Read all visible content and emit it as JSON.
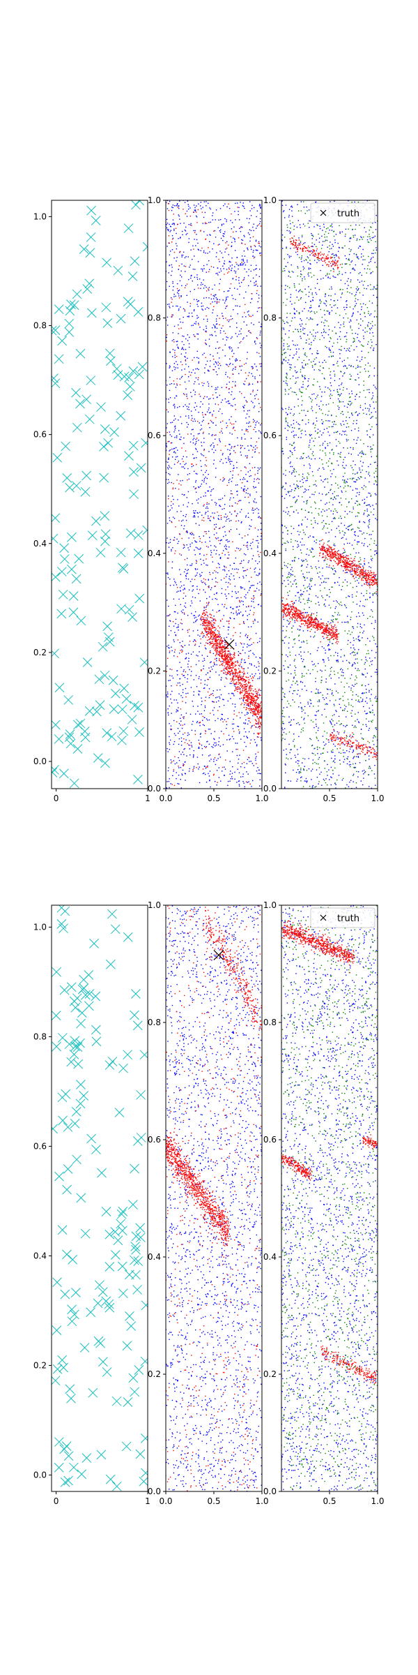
{
  "chart_data": [
    {
      "type": "scatter",
      "row": 1,
      "panel": 1,
      "xlim": [
        -0.05,
        1.0
      ],
      "ylim": [
        -0.05,
        1.03
      ],
      "xticks": [
        0,
        1
      ],
      "xtick_labels": [
        "0",
        "1"
      ],
      "yticks": [
        0.0,
        0.2,
        0.4,
        0.6,
        0.8,
        1.0
      ],
      "ytick_labels": [
        "0.0",
        "0.2",
        "0.4",
        "0.6",
        "0.8",
        "1.0"
      ],
      "series": [
        {
          "name": "samples",
          "marker": "x",
          "color": "#17bfbf",
          "count": 150,
          "dist": "uniform"
        }
      ]
    },
    {
      "type": "scatter",
      "row": 1,
      "panel": 2,
      "xlim": [
        0.0,
        1.0
      ],
      "ylim": [
        0.0,
        1.0
      ],
      "xticks": [
        0.0,
        0.5,
        1.0
      ],
      "xtick_labels": [
        "0.0",
        "0.5",
        "1.0"
      ],
      "yticks": [
        0.0,
        0.2,
        0.4,
        0.6,
        0.8,
        1.0
      ],
      "ytick_labels": [
        "0.0",
        "0.2",
        "0.4",
        "0.6",
        "0.8",
        "1.0"
      ],
      "series": [
        {
          "name": "blue",
          "color": "#0000ff",
          "count": 2600,
          "dist": "uniform"
        },
        {
          "name": "red-band",
          "color": "#ff0000",
          "count": 1000,
          "dist": "band",
          "p1": [
            0.38,
            0.29
          ],
          "p2": [
            1.0,
            0.12
          ],
          "width": 0.05
        },
        {
          "name": "red-scatter",
          "color": "#ff0000",
          "count": 500,
          "dist": "uniform"
        }
      ],
      "truth": {
        "x": 0.66,
        "y": 0.245
      }
    },
    {
      "type": "scatter",
      "row": 1,
      "panel": 3,
      "xlim": [
        0.0,
        1.0
      ],
      "ylim": [
        0.0,
        1.0
      ],
      "xticks": [
        0.5,
        1.0
      ],
      "xtick_labels": [
        "0.5",
        "1.0"
      ],
      "yticks": [
        0.0,
        0.2,
        0.4,
        0.6,
        0.8,
        1.0
      ],
      "ytick_labels": [
        "0.0",
        "0.2",
        "0.4",
        "0.6",
        "0.8",
        "1.0"
      ],
      "series": [
        {
          "name": "blue",
          "color": "#0000ff",
          "count": 2000,
          "dist": "uniform"
        },
        {
          "name": "green",
          "color": "#008000",
          "count": 1200,
          "dist": "uniform"
        },
        {
          "name": "red-band-1",
          "color": "#ff0000",
          "count": 500,
          "dist": "band",
          "p1": [
            0.0,
            0.31
          ],
          "p2": [
            0.58,
            0.26
          ],
          "width": 0.025
        },
        {
          "name": "red-band-2",
          "color": "#ff0000",
          "count": 500,
          "dist": "band",
          "p1": [
            0.4,
            0.41
          ],
          "p2": [
            1.0,
            0.35
          ],
          "width": 0.025
        },
        {
          "name": "red-band-3",
          "color": "#ff0000",
          "count": 150,
          "dist": "band",
          "p1": [
            0.1,
            0.93
          ],
          "p2": [
            0.6,
            0.89
          ],
          "width": 0.02
        },
        {
          "name": "red-band-4",
          "color": "#ff0000",
          "count": 150,
          "dist": "band",
          "p1": [
            0.5,
            0.09
          ],
          "p2": [
            1.0,
            0.06
          ],
          "width": 0.02
        }
      ],
      "legend": {
        "label": "truth",
        "position": "top-right"
      }
    },
    {
      "type": "scatter",
      "row": 2,
      "panel": 1,
      "xlim": [
        -0.05,
        1.0
      ],
      "ylim": [
        -0.03,
        1.04
      ],
      "xticks": [
        0,
        1
      ],
      "xtick_labels": [
        "0",
        "1"
      ],
      "yticks": [
        0.0,
        0.2,
        0.4,
        0.6,
        0.8,
        1.0
      ],
      "ytick_labels": [
        "0.0",
        "0.2",
        "0.4",
        "0.6",
        "0.8",
        "1.0"
      ],
      "series": [
        {
          "name": "samples",
          "marker": "x",
          "color": "#17bfbf",
          "count": 150,
          "dist": "uniform"
        }
      ]
    },
    {
      "type": "scatter",
      "row": 2,
      "panel": 2,
      "xlim": [
        0.0,
        1.0
      ],
      "ylim": [
        0.0,
        1.0
      ],
      "xticks": [
        0.0,
        0.5,
        1.0
      ],
      "xtick_labels": [
        "0.0",
        "0.5",
        "1.0"
      ],
      "yticks": [
        0.0,
        0.2,
        0.4,
        0.6,
        0.8,
        1.0
      ],
      "ytick_labels": [
        "0.0",
        "0.2",
        "0.4",
        "0.6",
        "0.8",
        "1.0"
      ],
      "series": [
        {
          "name": "blue",
          "color": "#0000ff",
          "count": 2300,
          "dist": "uniform"
        },
        {
          "name": "red-band",
          "color": "#ff0000",
          "count": 900,
          "dist": "band",
          "p1": [
            0.0,
            0.59
          ],
          "p2": [
            0.65,
            0.44
          ],
          "width": 0.05
        },
        {
          "name": "red-band-2",
          "color": "#ff0000",
          "count": 300,
          "dist": "band",
          "p1": [
            0.4,
            0.98
          ],
          "p2": [
            1.0,
            0.8
          ],
          "width": 0.05
        },
        {
          "name": "red-scatter",
          "color": "#ff0000",
          "count": 500,
          "dist": "uniform"
        }
      ],
      "truth": {
        "x": 0.55,
        "y": 0.915
      }
    },
    {
      "type": "scatter",
      "row": 2,
      "panel": 3,
      "xlim": [
        0.0,
        1.0
      ],
      "ylim": [
        0.0,
        1.0
      ],
      "xticks": [
        0.5,
        1.0
      ],
      "xtick_labels": [
        "0.5",
        "1.0"
      ],
      "yticks": [
        0.0,
        0.2,
        0.4,
        0.6,
        0.8,
        1.0
      ],
      "ytick_labels": [
        "0.0",
        "0.2",
        "0.4",
        "0.6",
        "0.8",
        "1.0"
      ],
      "series": [
        {
          "name": "blue",
          "color": "#0000ff",
          "count": 2200,
          "dist": "uniform"
        },
        {
          "name": "green",
          "color": "#008000",
          "count": 1200,
          "dist": "uniform"
        },
        {
          "name": "red-band-1",
          "color": "#ff0000",
          "count": 600,
          "dist": "band",
          "p1": [
            0.02,
            0.96
          ],
          "p2": [
            0.75,
            0.91
          ],
          "width": 0.025
        },
        {
          "name": "red-band-2",
          "color": "#ff0000",
          "count": 200,
          "dist": "band",
          "p1": [
            0.0,
            0.57
          ],
          "p2": [
            0.3,
            0.54
          ],
          "width": 0.02
        },
        {
          "name": "red-band-3",
          "color": "#ff0000",
          "count": 200,
          "dist": "band",
          "p1": [
            0.4,
            0.24
          ],
          "p2": [
            1.0,
            0.19
          ],
          "width": 0.02
        },
        {
          "name": "red-band-4",
          "color": "#ff0000",
          "count": 80,
          "dist": "band",
          "p1": [
            0.85,
            0.6
          ],
          "p2": [
            1.0,
            0.59
          ],
          "width": 0.015
        }
      ],
      "legend": {
        "label": "truth",
        "position": "top-right"
      }
    }
  ]
}
